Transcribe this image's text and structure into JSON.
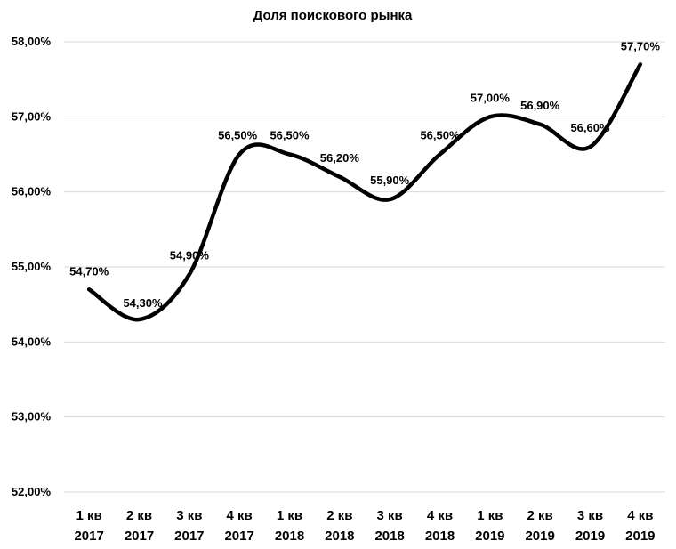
{
  "chart_data": {
    "type": "line",
    "title": "Доля поискового рынка",
    "xlabel": "",
    "ylabel": "",
    "categories": [
      [
        "1 кв",
        "2017"
      ],
      [
        "2 кв",
        "2017"
      ],
      [
        "3 кв",
        "2017"
      ],
      [
        "4 кв",
        "2017"
      ],
      [
        "1 кв",
        "2018"
      ],
      [
        "2 кв",
        "2018"
      ],
      [
        "3 кв",
        "2018"
      ],
      [
        "4 кв",
        "2018"
      ],
      [
        "1 кв",
        "2019"
      ],
      [
        "2 кв",
        "2019"
      ],
      [
        "3 кв",
        "2019"
      ],
      [
        "4 кв",
        "2019"
      ]
    ],
    "values": [
      54.7,
      54.3,
      54.9,
      56.5,
      56.5,
      56.2,
      55.9,
      56.5,
      57.0,
      56.9,
      56.6,
      57.7
    ],
    "data_labels": [
      "54,70%",
      "54,30%",
      "54,90%",
      "56,50%",
      "56,50%",
      "56,20%",
      "55,90%",
      "56,50%",
      "57,00%",
      "56,90%",
      "56,60%",
      "57,70%"
    ],
    "ylim": [
      52,
      58
    ],
    "y_ticks": [
      52,
      53,
      54,
      55,
      56,
      57,
      58
    ],
    "y_tick_labels": [
      "52,00%",
      "53,00%",
      "54,00%",
      "55,00%",
      "56,00%",
      "57,00%",
      "58,00%"
    ],
    "grid": true,
    "smooth": true,
    "line_color": "#000000",
    "grid_color": "#d9d9d9"
  }
}
